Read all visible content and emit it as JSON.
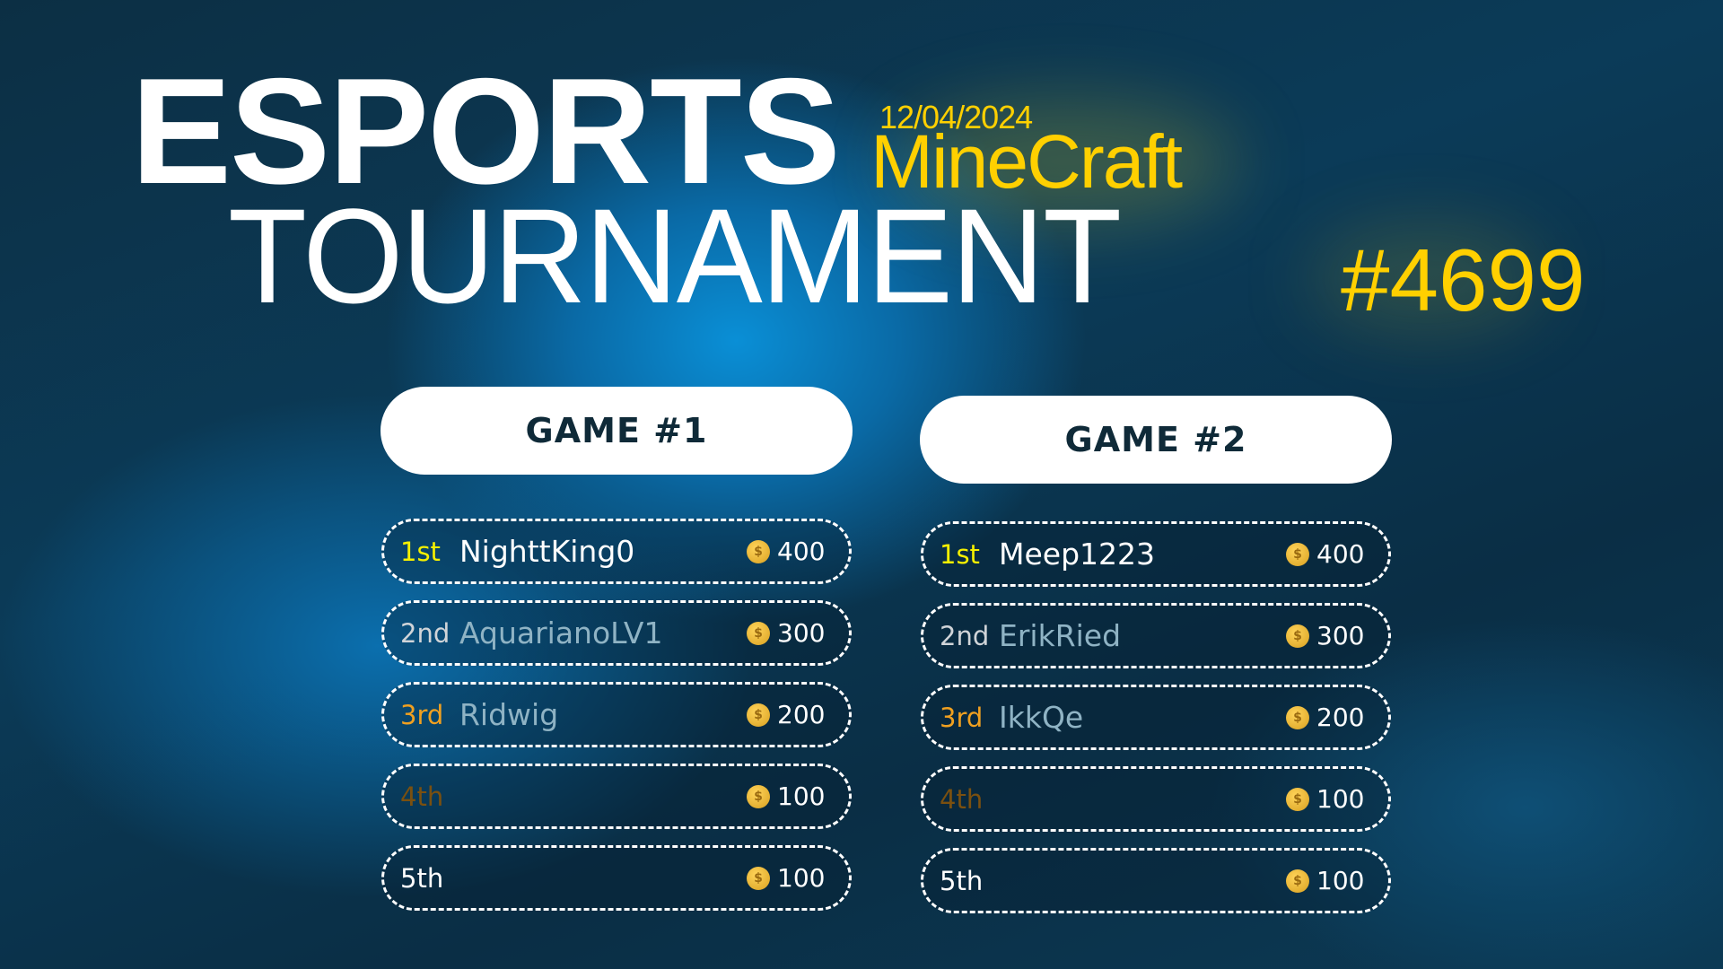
{
  "header": {
    "line1": "ESPORTS",
    "line2": "TOURNAMENT",
    "date": "12/04/2024",
    "game": "MineCraft",
    "tournament_id": "#4699"
  },
  "colors": {
    "accent": "#ffd000",
    "first": "#f5f000",
    "second": "#d0d4d8",
    "third": "#f0a020",
    "fourth": "#7a5010",
    "fifth": "#ffffff"
  },
  "games": [
    {
      "title": "GAME #1",
      "rows": [
        {
          "rank": "1st",
          "name": "NighttKing0",
          "points": "400"
        },
        {
          "rank": "2nd",
          "name": "AquarianoLV1",
          "points": "300"
        },
        {
          "rank": "3rd",
          "name": "Ridwig",
          "points": "200"
        },
        {
          "rank": "4th",
          "name": "",
          "points": "100"
        },
        {
          "rank": "5th",
          "name": "",
          "points": "100"
        }
      ]
    },
    {
      "title": "GAME #2",
      "rows": [
        {
          "rank": "1st",
          "name": "Meep1223",
          "points": "400"
        },
        {
          "rank": "2nd",
          "name": "ErikRied",
          "points": "300"
        },
        {
          "rank": "3rd",
          "name": "IkkQe",
          "points": "200"
        },
        {
          "rank": "4th",
          "name": "",
          "points": "100"
        },
        {
          "rank": "5th",
          "name": "",
          "points": "100"
        }
      ]
    }
  ]
}
